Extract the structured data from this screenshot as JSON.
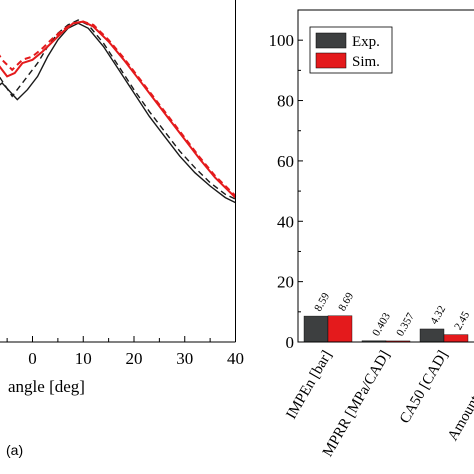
{
  "panel_label": "(a)",
  "chart_data": [
    {
      "type": "line",
      "xlabel": "angle [deg]",
      "ylabel": "",
      "xlim": [
        -10,
        40
      ],
      "ylim": [
        0,
        100
      ],
      "x_ticks": [
        0,
        10,
        20,
        30,
        40
      ],
      "grid": false,
      "series": [
        {
          "color": "#1a1a1a",
          "dash": "solid",
          "points": [
            [
              -10,
              73
            ],
            [
              -6,
              78
            ],
            [
              -3,
              73
            ],
            [
              -1,
              76
            ],
            [
              1,
              80
            ],
            [
              3,
              86
            ],
            [
              5,
              91
            ],
            [
              7,
              94.5
            ],
            [
              9,
              96
            ],
            [
              11,
              94.5
            ],
            [
              14,
              89
            ],
            [
              17,
              82
            ],
            [
              20,
              75
            ],
            [
              23,
              68
            ],
            [
              26,
              62
            ],
            [
              29,
              56
            ],
            [
              32,
              51
            ],
            [
              35,
              47
            ],
            [
              38,
              43.5
            ],
            [
              40,
              42
            ]
          ]
        },
        {
          "color": "#1a1a1a",
          "dash": "dashed",
          "points": [
            [
              -10,
              75
            ],
            [
              -7,
              81
            ],
            [
              -4,
              74
            ],
            [
              -1.5,
              79
            ],
            [
              1,
              84
            ],
            [
              3,
              89
            ],
            [
              5,
              93
            ],
            [
              7,
              95.5
            ],
            [
              9,
              97
            ],
            [
              11,
              95.5
            ],
            [
              14,
              90
            ],
            [
              17,
              83
            ],
            [
              20,
              76
            ],
            [
              23,
              69.5
            ],
            [
              26,
              63.5
            ],
            [
              29,
              57.5
            ],
            [
              32,
              52.5
            ],
            [
              35,
              48
            ],
            [
              38,
              44.5
            ],
            [
              40,
              43
            ]
          ]
        },
        {
          "color": "#e41a1c",
          "dash": "solid",
          "points": [
            [
              -10,
              83
            ],
            [
              -8,
              88
            ],
            [
              -7,
              84
            ],
            [
              -5,
              80
            ],
            [
              -3.5,
              81
            ],
            [
              -2,
              84
            ],
            [
              0,
              85
            ],
            [
              2,
              87.5
            ],
            [
              4,
              90.5
            ],
            [
              6,
              93.5
            ],
            [
              8,
              96
            ],
            [
              10,
              96.5
            ],
            [
              12,
              95
            ],
            [
              15,
              90.5
            ],
            [
              18,
              85
            ],
            [
              21,
              79
            ],
            [
              24,
              73
            ],
            [
              27,
              67
            ],
            [
              30,
              61
            ],
            [
              33,
              55
            ],
            [
              36,
              49.5
            ],
            [
              40,
              43.5
            ]
          ]
        },
        {
          "color": "#e41a1c",
          "dash": "dashed",
          "points": [
            [
              -10,
              85
            ],
            [
              -8,
              90
            ],
            [
              -6,
              85
            ],
            [
              -4,
              82
            ],
            [
              -2,
              85
            ],
            [
              0,
              86
            ],
            [
              2,
              88.5
            ],
            [
              4,
              91.5
            ],
            [
              6,
              94
            ],
            [
              8,
              96
            ],
            [
              10,
              96.5
            ],
            [
              12,
              95.5
            ],
            [
              15,
              91
            ],
            [
              18,
              85.5
            ],
            [
              21,
              79.5
            ],
            [
              24,
              73.5
            ],
            [
              27,
              67.5
            ],
            [
              30,
              61.5
            ],
            [
              33,
              55.5
            ],
            [
              36,
              50
            ],
            [
              40,
              44
            ]
          ]
        }
      ]
    },
    {
      "type": "bar",
      "ylim": [
        0,
        110
      ],
      "y_ticks": [
        0,
        20,
        40,
        60,
        80,
        100
      ],
      "grid": false,
      "legend": {
        "placement": "top-left"
      },
      "categories": [
        "IMPEn [bar]",
        "MPRR [MPa/CAD]",
        "CA50 [CAD]",
        "Amount of fuel ["
      ],
      "series": [
        {
          "name": "Exp.",
          "color": "#3d3f40",
          "values": [
            8.59,
            0.403,
            4.32,
            null
          ],
          "labels": [
            "8.59",
            "0.403",
            "4.32",
            ""
          ]
        },
        {
          "name": "Sim.",
          "color": "#e41a1c",
          "values": [
            8.69,
            0.357,
            2.45,
            null
          ],
          "labels": [
            "8.69",
            "0.357",
            "2.45",
            ""
          ]
        }
      ]
    }
  ]
}
